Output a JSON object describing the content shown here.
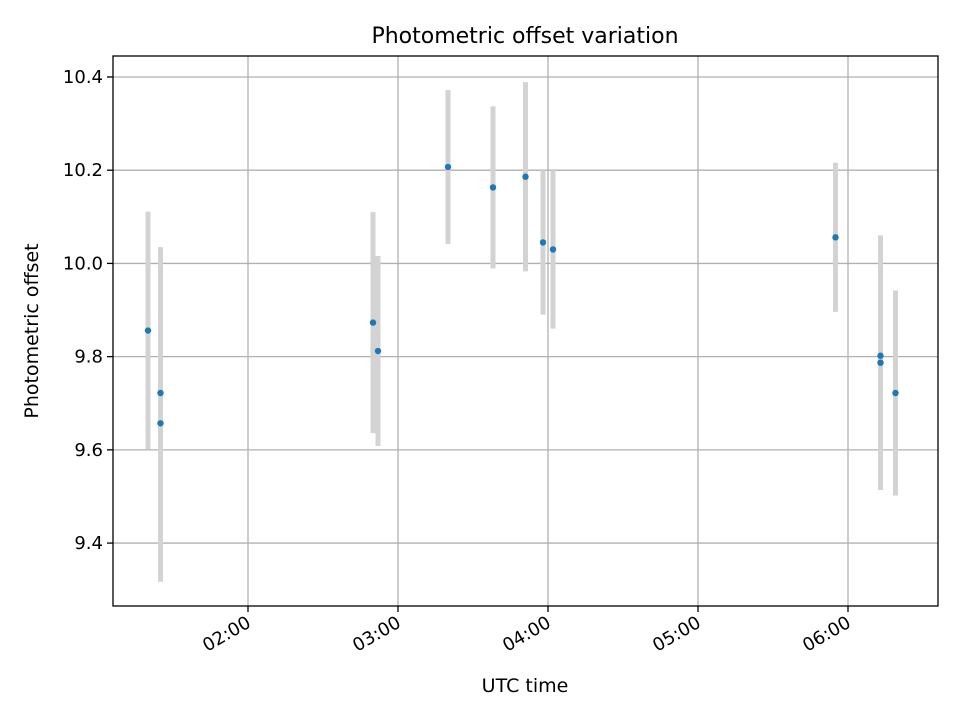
{
  "chart_data": {
    "type": "scatter",
    "title": "Photometric offset variation",
    "xlabel": "UTC time",
    "ylabel": "Photometric offset",
    "x_tick_labels": [
      "02:00",
      "03:00",
      "04:00",
      "05:00",
      "06:00"
    ],
    "x_ticks": [
      "02:00",
      "03:00",
      "04:00",
      "05:00",
      "06:00"
    ],
    "y_ticks": [
      9.4,
      9.6,
      9.8,
      10.0,
      10.2,
      10.4
    ],
    "y_tick_labels": [
      "9.4",
      "9.6",
      "9.8",
      "10.0",
      "10.2",
      "10.4"
    ],
    "xlim": [
      "01:06",
      "06:36"
    ],
    "ylim": [
      9.265,
      10.445
    ],
    "grid": true,
    "series": [
      {
        "color": "#1f77b4",
        "errorbar_color": "#d3d3d3",
        "points": [
          {
            "x": "01:20",
            "y": 9.856,
            "yerr": 0.255
          },
          {
            "x": "01:25",
            "y": 9.657,
            "yerr": 0.34
          },
          {
            "x": "01:25",
            "y": 9.722,
            "yerr": 0.313
          },
          {
            "x": "02:50",
            "y": 9.873,
            "yerr": 0.237
          },
          {
            "x": "02:52",
            "y": 9.812,
            "yerr": 0.204
          },
          {
            "x": "03:20",
            "y": 10.207,
            "yerr": 0.165
          },
          {
            "x": "03:38",
            "y": 10.163,
            "yerr": 0.174
          },
          {
            "x": "03:51",
            "y": 10.186,
            "yerr": 0.203
          },
          {
            "x": "03:58",
            "y": 10.045,
            "yerr": 0.155
          },
          {
            "x": "04:02",
            "y": 10.03,
            "yerr": 0.17
          },
          {
            "x": "05:55",
            "y": 10.056,
            "yerr": 0.16
          },
          {
            "x": "06:13",
            "y": 9.802,
            "yerr": 0.24
          },
          {
            "x": "06:13",
            "y": 9.787,
            "yerr": 0.273
          },
          {
            "x": "06:19",
            "y": 9.722,
            "yerr": 0.22
          }
        ]
      }
    ]
  }
}
